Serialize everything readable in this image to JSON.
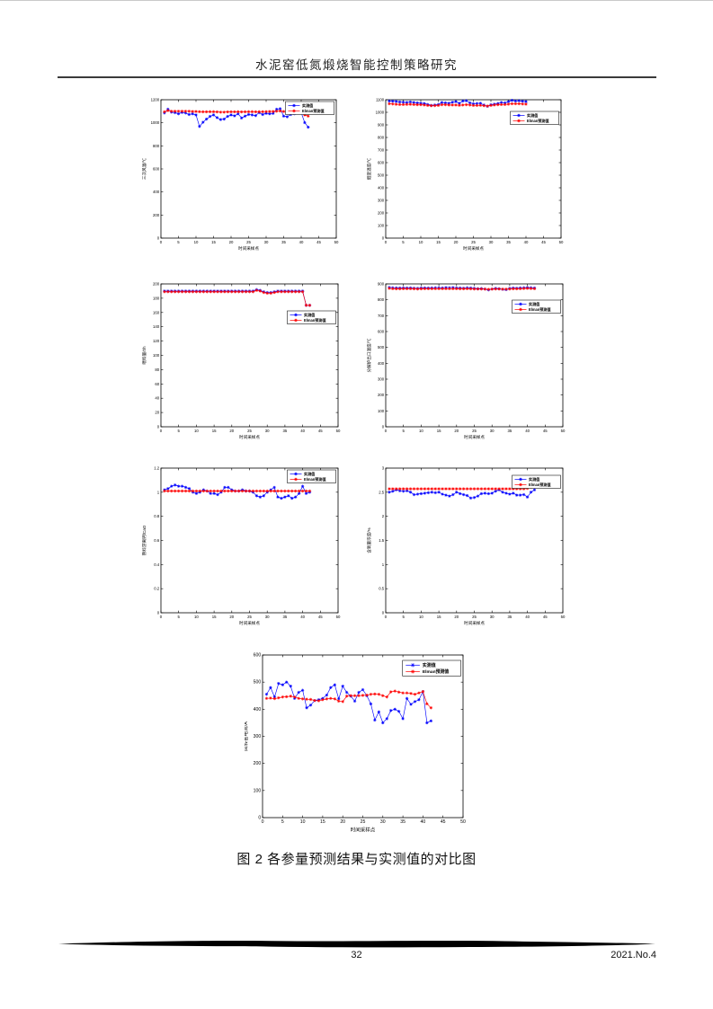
{
  "page": {
    "header_title": "水泥窑低氮煅烧智能控制策略研究",
    "caption": "图 2 各参量预测结果与实测值的对比图",
    "footer": {
      "page_number": "32",
      "issue": "2021.No.4"
    }
  },
  "colors": {
    "measured": "#0000FF",
    "predicted": "#FF0000",
    "axis": "#000000"
  },
  "legend_labels": {
    "measured": "实测值",
    "predicted": "Elman预测值"
  },
  "chart_data": [
    {
      "type": "line",
      "title": "",
      "xlabel": "时间采样点",
      "ylabel": "三次风温/℃",
      "xlim": [
        0,
        50
      ],
      "xtick_step": 5,
      "ylim": [
        0,
        1200
      ],
      "ytick_step": 200,
      "grid": false,
      "legend_position": "top-right",
      "legend_dy": 2,
      "x_start": 1,
      "series": [
        {
          "name": "实测值",
          "color": "#0000FF",
          "values": [
            1085,
            1118,
            1092,
            1088,
            1078,
            1090,
            1085,
            1072,
            1078,
            1068,
            968,
            1005,
            1032,
            1055,
            1068,
            1045,
            1028,
            1032,
            1055,
            1068,
            1060,
            1078,
            1042,
            1058,
            1072,
            1068,
            1062,
            1088,
            1072,
            1082,
            1078,
            1082,
            1118,
            1122,
            1058,
            1052,
            1072,
            1078,
            1098,
            1088,
            1002,
            962
          ]
        },
        {
          "name": "Elman预测值",
          "color": "#FF0000",
          "values": [
            1095,
            1106,
            1100,
            1100,
            1100,
            1100,
            1100,
            1100,
            1098,
            1098,
            1096,
            1095,
            1095,
            1096,
            1096,
            1094,
            1092,
            1092,
            1094,
            1095,
            1095,
            1096,
            1094,
            1095,
            1096,
            1096,
            1095,
            1096,
            1096,
            1097,
            1098,
            1098,
            1100,
            1102,
            1098,
            1096,
            1096,
            1097,
            1100,
            1098,
            1068,
            1058
          ]
        }
      ]
    },
    {
      "type": "line",
      "title": "",
      "xlabel": "时间采样点",
      "ylabel": "烟室温度/℃",
      "xlim": [
        0,
        50
      ],
      "xtick_step": 5,
      "ylim": [
        0,
        1100
      ],
      "ytick_step": 100,
      "grid": false,
      "legend_position": "top-right",
      "legend_dy": 13,
      "x_start": 1,
      "series": [
        {
          "name": "实测值",
          "color": "#0000FF",
          "values": [
            1090,
            1088,
            1086,
            1082,
            1080,
            1078,
            1082,
            1078,
            1075,
            1072,
            1070,
            1062,
            1055,
            1058,
            1062,
            1078,
            1075,
            1072,
            1080,
            1085,
            1072,
            1090,
            1092,
            1075,
            1068,
            1070,
            1072,
            1058,
            1048,
            1060,
            1065,
            1070,
            1078,
            1075,
            1085,
            1095,
            1090,
            1092,
            1088,
            1085
          ]
        },
        {
          "name": "Elman预测值",
          "color": "#FF0000",
          "values": [
            1068,
            1066,
            1064,
            1062,
            1062,
            1063,
            1064,
            1062,
            1060,
            1060,
            1058,
            1055,
            1052,
            1053,
            1055,
            1060,
            1060,
            1058,
            1058,
            1058,
            1056,
            1058,
            1060,
            1058,
            1055,
            1055,
            1056,
            1052,
            1050,
            1055,
            1058,
            1060,
            1062,
            1062,
            1065,
            1068,
            1068,
            1068,
            1066,
            1065
          ]
        }
      ]
    },
    {
      "type": "line",
      "title": "",
      "xlabel": "时间采样点",
      "ylabel": "喂料量/t/h",
      "xlim": [
        0,
        50
      ],
      "xtick_step": 5,
      "ylim": [
        0,
        200
      ],
      "ytick_step": 20,
      "grid": false,
      "legend_position": "top-right",
      "legend_dy": 30,
      "x_start": 1,
      "series": [
        {
          "name": "实测值",
          "color": "#0000FF",
          "values": [
            190,
            190,
            190,
            190,
            190,
            190,
            190,
            190,
            190,
            190,
            190,
            190,
            190,
            190,
            190,
            190,
            190,
            190,
            190,
            190,
            190,
            190,
            190,
            190,
            190,
            190,
            192,
            191,
            189,
            188,
            188,
            189,
            190,
            190,
            190,
            190,
            190,
            190,
            190,
            190,
            170,
            170
          ]
        },
        {
          "name": "Elman预测值",
          "color": "#FF0000",
          "values": [
            189,
            189,
            189,
            189,
            189,
            189,
            189,
            189,
            189,
            189,
            189,
            189,
            189,
            189,
            189,
            189,
            189,
            189,
            189,
            189,
            189,
            189,
            189,
            189,
            189,
            189,
            191,
            190,
            188,
            187,
            187,
            188,
            189,
            189,
            189,
            189,
            189,
            189,
            189,
            189,
            170,
            170
          ]
        }
      ]
    },
    {
      "type": "line",
      "title": "",
      "xlabel": "时间采样点",
      "ylabel": "分解炉出口温度/℃",
      "xlim": [
        0,
        50
      ],
      "xtick_step": 5,
      "ylim": [
        0,
        900
      ],
      "ytick_step": 100,
      "grid": false,
      "legend_position": "top-right",
      "legend_dy": 18,
      "x_start": 1,
      "series": [
        {
          "name": "实测值",
          "color": "#0000FF",
          "values": [
            878,
            876,
            875,
            874,
            875,
            874,
            875,
            873,
            872,
            874,
            875,
            874,
            875,
            876,
            876,
            875,
            877,
            876,
            877,
            875,
            874,
            873,
            876,
            874,
            872,
            870,
            871,
            868,
            862,
            868,
            872,
            870,
            866,
            864,
            872,
            874,
            873,
            875,
            876,
            877,
            876,
            874
          ]
        },
        {
          "name": "Elman预测值",
          "color": "#FF0000",
          "values": [
            872,
            870,
            869,
            869,
            870,
            870,
            870,
            869,
            868,
            869,
            870,
            870,
            870,
            870,
            870,
            870,
            870,
            870,
            870,
            870,
            869,
            869,
            870,
            869,
            868,
            868,
            868,
            867,
            866,
            867,
            868,
            868,
            867,
            867,
            868,
            869,
            869,
            870,
            871,
            872,
            871,
            870
          ]
        }
      ]
    },
    {
      "type": "line",
      "title": "",
      "xlabel": "时间采样点",
      "ylabel": "熟料游离钙fCaO",
      "xlim": [
        0,
        50
      ],
      "xtick_step": 5,
      "ylim": [
        0,
        1.2
      ],
      "ytick_step": 0.2,
      "grid": false,
      "legend_position": "top-right",
      "legend_dy": 2,
      "x_start": 1,
      "series": [
        {
          "name": "实测值",
          "color": "#0000FF",
          "values": [
            1.02,
            1.03,
            1.05,
            1.06,
            1.05,
            1.05,
            1.04,
            1.03,
            1.0,
            0.99,
            1.0,
            1.02,
            1.01,
            0.99,
            0.99,
            0.98,
            1.0,
            1.04,
            1.04,
            1.02,
            1.01,
            1.01,
            1.02,
            1.01,
            1.01,
            1.0,
            0.97,
            0.96,
            0.97,
            1.0,
            1.02,
            1.04,
            0.96,
            0.95,
            0.96,
            0.97,
            0.95,
            0.96,
            0.99,
            1.05,
            0.99,
            1.0
          ]
        },
        {
          "name": "Elman预测值",
          "color": "#FF0000",
          "values": [
            1.01,
            1.01,
            1.01,
            1.01,
            1.01,
            1.01,
            1.01,
            1.01,
            1.01,
            1.01,
            1.01,
            1.01,
            1.01,
            1.01,
            1.01,
            1.01,
            1.01,
            1.01,
            1.01,
            1.01,
            1.01,
            1.01,
            1.01,
            1.01,
            1.01,
            1.01,
            1.01,
            1.01,
            1.01,
            1.01,
            1.01,
            1.01,
            1.01,
            1.01,
            1.01,
            1.01,
            1.01,
            1.01,
            1.01,
            1.01,
            1.01,
            1.01
          ]
        }
      ]
    },
    {
      "type": "line",
      "title": "",
      "xlabel": "时间采样点",
      "ylabel": "含氧量浓度/%",
      "xlim": [
        0,
        50
      ],
      "xtick_step": 5,
      "ylim": [
        0,
        3
      ],
      "ytick_step": 0.5,
      "grid": false,
      "legend_position": "top-right",
      "legend_dy": 8,
      "x_start": 1,
      "series": [
        {
          "name": "实测值",
          "color": "#0000FF",
          "values": [
            2.5,
            2.52,
            2.55,
            2.53,
            2.52,
            2.53,
            2.5,
            2.45,
            2.46,
            2.47,
            2.48,
            2.49,
            2.5,
            2.49,
            2.5,
            2.46,
            2.44,
            2.42,
            2.45,
            2.5,
            2.47,
            2.45,
            2.43,
            2.38,
            2.39,
            2.42,
            2.47,
            2.48,
            2.47,
            2.48,
            2.52,
            2.55,
            2.5,
            2.48,
            2.46,
            2.48,
            2.44,
            2.44,
            2.45,
            2.4,
            2.5,
            2.55
          ]
        },
        {
          "name": "Elman预测值",
          "color": "#FF0000",
          "values": [
            2.57,
            2.57,
            2.57,
            2.57,
            2.57,
            2.57,
            2.57,
            2.57,
            2.57,
            2.57,
            2.57,
            2.57,
            2.57,
            2.57,
            2.57,
            2.57,
            2.57,
            2.57,
            2.57,
            2.57,
            2.57,
            2.57,
            2.57,
            2.57,
            2.57,
            2.57,
            2.57,
            2.57,
            2.57,
            2.57,
            2.57,
            2.57,
            2.57,
            2.57,
            2.57,
            2.57,
            2.57,
            2.57,
            2.57,
            2.58,
            2.6,
            2.62
          ]
        }
      ]
    },
    {
      "type": "line",
      "title": "",
      "xlabel": "时间采样点",
      "ylabel": "回转窑电流/A",
      "xlim": [
        0,
        50
      ],
      "xtick_step": 5,
      "ylim": [
        0,
        600
      ],
      "ytick_step": 100,
      "grid": false,
      "legend_position": "top-right",
      "legend_dy": 6,
      "x_start": 1,
      "series": [
        {
          "name": "实测值",
          "color": "#0000FF",
          "values": [
            455,
            480,
            445,
            495,
            490,
            500,
            485,
            440,
            462,
            470,
            405,
            415,
            432,
            435,
            440,
            452,
            480,
            490,
            438,
            485,
            462,
            448,
            430,
            462,
            472,
            450,
            420,
            360,
            390,
            350,
            365,
            395,
            400,
            392,
            365,
            440,
            418,
            428,
            435,
            465,
            350,
            357
          ]
        },
        {
          "name": "Elman预测值",
          "color": "#FF0000",
          "values": [
            440,
            441,
            439,
            442,
            445,
            446,
            448,
            445,
            440,
            438,
            437,
            436,
            432,
            431,
            435,
            438,
            440,
            438,
            430,
            428,
            448,
            450,
            450,
            450,
            451,
            452,
            455,
            456,
            455,
            450,
            445,
            464,
            467,
            463,
            460,
            460,
            458,
            455,
            460,
            465,
            420,
            405
          ]
        }
      ]
    }
  ]
}
